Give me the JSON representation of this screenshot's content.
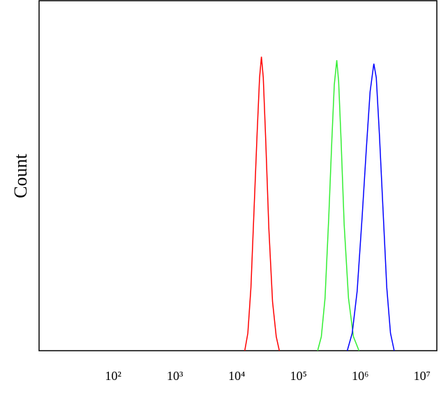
{
  "chart_data": {
    "type": "line",
    "y_label": "Count",
    "log_x": true,
    "xlim": [
      6.3,
      17400000
    ],
    "ylim": [
      0,
      100
    ],
    "xticks": [
      {
        "value": 100,
        "label": "10²"
      },
      {
        "value": 1000,
        "label": "10³"
      },
      {
        "value": 10000,
        "label": "10⁴"
      },
      {
        "value": 100000,
        "label": "10⁵"
      },
      {
        "value": 1000000,
        "label": "10⁶"
      },
      {
        "value": 10000000,
        "label": "10⁷"
      }
    ],
    "series": [
      {
        "color": "#ff0000",
        "x": [
          13490,
          15140,
          16980,
          19050,
          21380,
          23440,
          25120,
          26920,
          29510,
          33110,
          38020,
          43650,
          48980
        ],
        "values": [
          0,
          5,
          18,
          40,
          62,
          78,
          84,
          78,
          60,
          35,
          14,
          4,
          0
        ]
      },
      {
        "color": "#33ee33",
        "x": [
          204200,
          234400,
          269200,
          309000,
          346700,
          380200,
          416900,
          446700,
          489800,
          549500,
          645700,
          776200,
          955000
        ],
        "values": [
          0,
          4,
          15,
          38,
          60,
          76,
          83,
          77,
          60,
          36,
          15,
          4,
          0
        ]
      },
      {
        "color": "#0000ff",
        "x": [
          616600,
          741300,
          891300,
          1071500,
          1258900,
          1445400,
          1659600,
          1819700,
          2041700,
          2344200,
          2691500,
          3090300,
          3548100
        ],
        "values": [
          0,
          5,
          17,
          38,
          58,
          74,
          82,
          78,
          62,
          40,
          18,
          5,
          0
        ]
      }
    ]
  }
}
